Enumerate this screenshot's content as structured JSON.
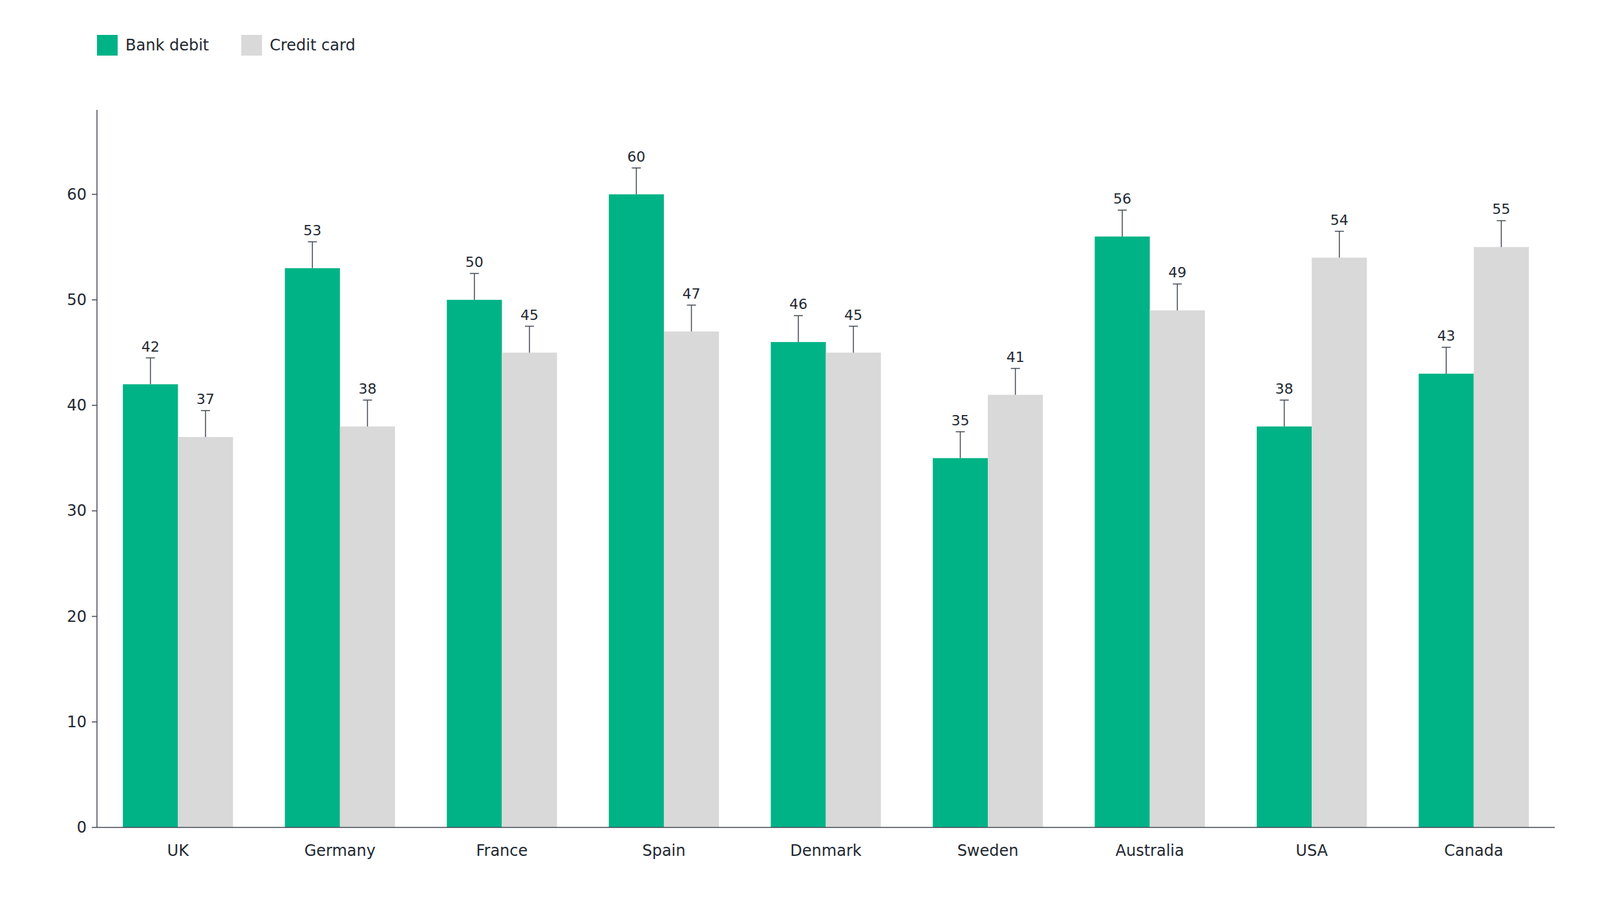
{
  "chart_data": {
    "type": "bar",
    "categories": [
      "UK",
      "Germany",
      "France",
      "Spain",
      "Denmark",
      "Sweden",
      "Australia",
      "USA",
      "Canada"
    ],
    "series": [
      {
        "name": "Bank debit",
        "color": "#00b386",
        "values": [
          42,
          53,
          50,
          60,
          46,
          35,
          56,
          38,
          43
        ],
        "errors_upper": [
          2.5,
          2.5,
          2.5,
          2.5,
          2.5,
          2.5,
          2.5,
          2.5,
          2.5
        ]
      },
      {
        "name": "Credit card",
        "color": "#d9d9d9",
        "values": [
          37,
          38,
          45,
          47,
          45,
          41,
          49,
          54,
          55
        ],
        "errors_upper": [
          2.5,
          2.5,
          2.5,
          2.5,
          2.5,
          2.5,
          2.5,
          2.5,
          2.5
        ]
      }
    ],
    "ylim": [
      0,
      68
    ],
    "yticks": [
      0,
      10,
      20,
      30,
      40,
      50,
      60
    ],
    "grid": false,
    "legend": "top-left",
    "data_labels": true
  }
}
